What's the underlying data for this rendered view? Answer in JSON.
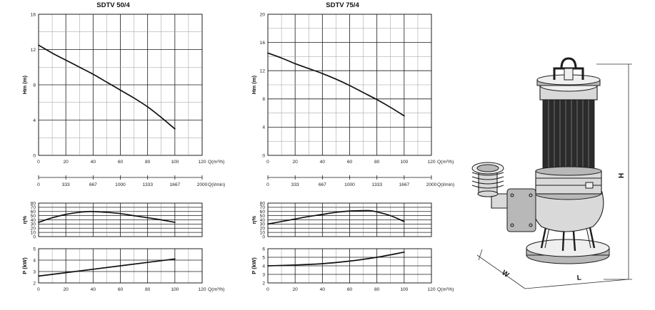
{
  "chart_data": [
    {
      "id": "sdtv50-hm",
      "type": "line",
      "title": "SDTV 50/4",
      "ylabel": "Hm   (m)",
      "xlabel": "Q(m³/h)",
      "xlim": [
        0,
        120
      ],
      "ylim": [
        0,
        16
      ],
      "xticks": [
        0,
        20,
        40,
        60,
        80,
        100,
        120
      ],
      "yticks": [
        0,
        4,
        8,
        12,
        16
      ],
      "secondary_axis": {
        "xlabel": "Q(l/min)",
        "ticks": [
          "0",
          "333",
          "667",
          "1000",
          "1333",
          "1667",
          "2000"
        ]
      },
      "series": [
        {
          "x": [
            0,
            10,
            20,
            30,
            40,
            50,
            60,
            70,
            80,
            90,
            100
          ],
          "y": [
            12.5,
            11.6,
            10.8,
            10.0,
            9.2,
            8.3,
            7.4,
            6.5,
            5.5,
            4.3,
            3.0
          ]
        }
      ]
    },
    {
      "id": "sdtv50-eff",
      "type": "line",
      "ylabel": "η%",
      "xlim": [
        0,
        120
      ],
      "ylim": [
        0,
        80
      ],
      "yticks": [
        0,
        10,
        20,
        30,
        40,
        50,
        60,
        70,
        80
      ],
      "series": [
        {
          "x": [
            0,
            10,
            20,
            30,
            38,
            50,
            60,
            70,
            80,
            90,
            100
          ],
          "y": [
            34,
            45,
            53,
            58,
            60,
            58,
            55,
            50,
            45,
            40,
            34
          ]
        }
      ]
    },
    {
      "id": "sdtv50-power",
      "type": "line",
      "ylabel": "P   (kW)",
      "xlabel": "Q(m³/h)",
      "xlim": [
        0,
        120
      ],
      "ylim": [
        2,
        5
      ],
      "xticks": [
        0,
        20,
        40,
        60,
        80,
        100,
        120
      ],
      "yticks": [
        2,
        3,
        4,
        5
      ],
      "series": [
        {
          "x": [
            0,
            20,
            40,
            60,
            80,
            100
          ],
          "y": [
            2.6,
            2.9,
            3.2,
            3.5,
            3.8,
            4.1
          ]
        }
      ]
    },
    {
      "id": "sdtv75-hm",
      "type": "line",
      "title": "SDTV 75/4",
      "ylabel": "Hm   (m)",
      "xlabel": "Q(m³/h)",
      "xlim": [
        0,
        120
      ],
      "ylim": [
        0,
        20
      ],
      "xticks": [
        0,
        20,
        40,
        60,
        80,
        100,
        120
      ],
      "yticks": [
        0,
        4,
        8,
        12,
        16,
        20
      ],
      "secondary_axis": {
        "xlabel": "Q(l/min)",
        "ticks": [
          "0",
          "333",
          "667",
          "1000",
          "1333",
          "1667",
          "2000"
        ]
      },
      "series": [
        {
          "x": [
            0,
            10,
            20,
            30,
            40,
            50,
            60,
            70,
            80,
            90,
            100
          ],
          "y": [
            14.5,
            13.8,
            13.0,
            12.3,
            11.6,
            10.8,
            9.9,
            8.9,
            7.9,
            6.8,
            5.6
          ]
        }
      ]
    },
    {
      "id": "sdtv75-eff",
      "type": "line",
      "ylabel": "η%",
      "xlim": [
        0,
        120
      ],
      "ylim": [
        0,
        80
      ],
      "yticks": [
        0,
        10,
        20,
        30,
        40,
        50,
        60,
        70,
        80
      ],
      "series": [
        {
          "x": [
            0,
            10,
            20,
            30,
            40,
            50,
            60,
            70,
            75,
            80,
            90,
            100
          ],
          "y": [
            30,
            36,
            42,
            48,
            53,
            58,
            61,
            62,
            62,
            59,
            50,
            36
          ]
        }
      ]
    },
    {
      "id": "sdtv75-power",
      "type": "line",
      "ylabel": "P   (kW)",
      "xlabel": "Q(m³/h)",
      "xlim": [
        0,
        120
      ],
      "ylim": [
        2,
        6
      ],
      "xticks": [
        0,
        20,
        40,
        60,
        80,
        100,
        120
      ],
      "yticks": [
        2,
        3,
        4,
        5,
        6
      ],
      "series": [
        {
          "x": [
            0,
            20,
            40,
            60,
            80,
            100
          ],
          "y": [
            4.0,
            4.1,
            4.25,
            4.55,
            5.0,
            5.6
          ]
        }
      ]
    }
  ],
  "pump_illustration": {
    "name": "submersible-pump-drawing",
    "dimensions": [
      "H",
      "W",
      "L"
    ]
  }
}
